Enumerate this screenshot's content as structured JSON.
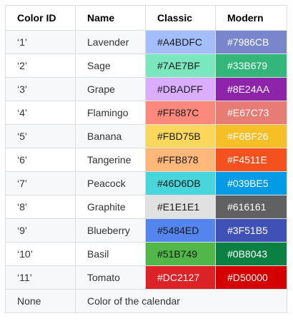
{
  "table": {
    "headers": [
      "Color ID",
      "Name",
      "Classic",
      "Modern"
    ],
    "rows": [
      {
        "id": "‘1’",
        "name": "Lavender",
        "classic": "#A4BDFC",
        "modern": "#7986CB"
      },
      {
        "id": "‘2’",
        "name": "Sage",
        "classic": "#7AE7BF",
        "modern": "#33B679"
      },
      {
        "id": "‘3’",
        "name": "Grape",
        "classic": "#DBADFF",
        "modern": "#8E24AA"
      },
      {
        "id": "‘4’",
        "name": "Flamingo",
        "classic": "#FF887C",
        "modern": "#E67C73"
      },
      {
        "id": "‘5’",
        "name": "Banana",
        "classic": "#FBD75B",
        "modern": "#F6BF26"
      },
      {
        "id": "‘6’",
        "name": "Tangerine",
        "classic": "#FFB878",
        "modern": "#F4511E"
      },
      {
        "id": "‘7’",
        "name": "Peacock",
        "classic": "#46D6DB",
        "modern": "#039BE5"
      },
      {
        "id": "‘8’",
        "name": "Graphite",
        "classic": "#E1E1E1",
        "modern": "#616161"
      },
      {
        "id": "‘9’",
        "name": "Blueberry",
        "classic": "#5484ED",
        "modern": "#3F51B5"
      },
      {
        "id": "‘10’",
        "name": "Basil",
        "classic": "#51B749",
        "modern": "#0B8043"
      },
      {
        "id": "‘11’",
        "name": "Tomato",
        "classic": "#DC2127",
        "modern": "#D50000"
      }
    ],
    "footer": {
      "id": "None",
      "description": "Color of the calendar"
    }
  },
  "colors": {
    "border": "#dcdfe2",
    "stripe": "#f6f8f9",
    "header_text": "#000000",
    "body_text": "#333333"
  }
}
